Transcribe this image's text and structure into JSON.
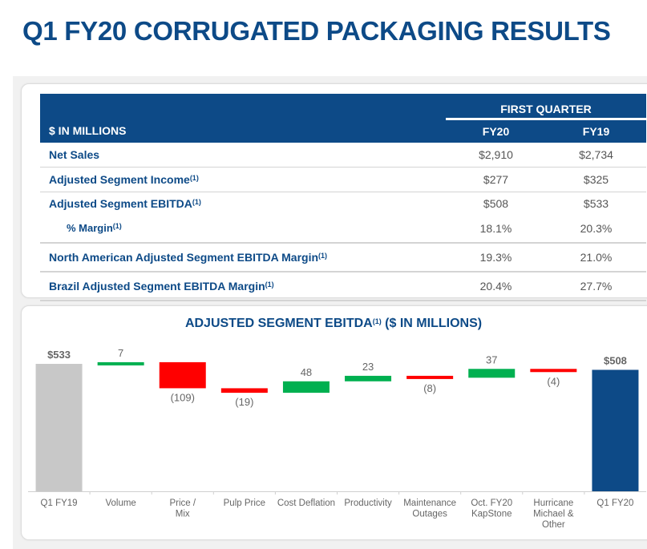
{
  "page_title": "Q1 FY20 CORRUGATED PACKAGING RESULTS",
  "table": {
    "units_label": "$ IN MILLIONS",
    "group_header": "FIRST QUARTER",
    "columns": [
      "FY20",
      "FY19"
    ],
    "rows": [
      {
        "label": "Net Sales",
        "note": "",
        "fy20": "$2,910",
        "fy19": "$2,734"
      },
      {
        "label": "Adjusted Segment Income",
        "note": "(1)",
        "fy20": "$277",
        "fy19": "$325"
      },
      {
        "label": "Adjusted Segment EBITDA",
        "note": "(1)",
        "fy20": "$508",
        "fy19": "$533"
      },
      {
        "label": "% Margin",
        "note": "(1)",
        "fy20": "18.1%",
        "fy19": "20.3%"
      },
      {
        "label": "North American Adjusted Segment EBITDA Margin",
        "note": "(1)",
        "fy20": "19.3%",
        "fy19": "21.0%"
      },
      {
        "label": "Brazil Adjusted Segment EBITDA Margin",
        "note": "(1)",
        "fy20": "20.4%",
        "fy19": "27.7%"
      }
    ]
  },
  "chart_title": {
    "text": "ADJUSTED SEGMENT EBITDA",
    "note": "(1)",
    "suffix": " ($ IN MILLIONS)"
  },
  "chart_data": {
    "type": "bar",
    "subtype": "waterfall",
    "title": "ADJUSTED SEGMENT EBITDA(1) ($ IN MILLIONS)",
    "categories": [
      "Q1 FY19",
      "Volume",
      "Price / Mix",
      "Pulp Price",
      "Cost Deflation",
      "Productivity",
      "Maintenance Outages",
      "Oct. FY20 KapStone",
      "Hurricane Michael & Other",
      "Q1 FY20"
    ],
    "category_lines": [
      [
        "Q1 FY19"
      ],
      [
        "Volume"
      ],
      [
        "Price /",
        "Mix"
      ],
      [
        "Pulp Price"
      ],
      [
        "Cost Deflation"
      ],
      [
        "Productivity"
      ],
      [
        "Maintenance",
        "Outages"
      ],
      [
        "Oct. FY20",
        "KapStone"
      ],
      [
        "Hurricane",
        "Michael &",
        "Other"
      ],
      [
        "Q1 FY20"
      ]
    ],
    "values": [
      533,
      7,
      -109,
      -19,
      48,
      23,
      -8,
      37,
      -4,
      508
    ],
    "kinds": [
      "total",
      "delta",
      "delta",
      "delta",
      "delta",
      "delta",
      "delta",
      "delta",
      "delta",
      "total"
    ],
    "labels": [
      "$533",
      "7",
      "(109)",
      "(19)",
      "48",
      "23",
      "(8)",
      "37",
      "(4)",
      "$508"
    ],
    "colors": {
      "start": "#c8c8c8",
      "increase": "#00b050",
      "decrease": "#ff0000",
      "end": "#0d4a87"
    },
    "xlabel": "",
    "ylabel": "",
    "grid": false
  }
}
